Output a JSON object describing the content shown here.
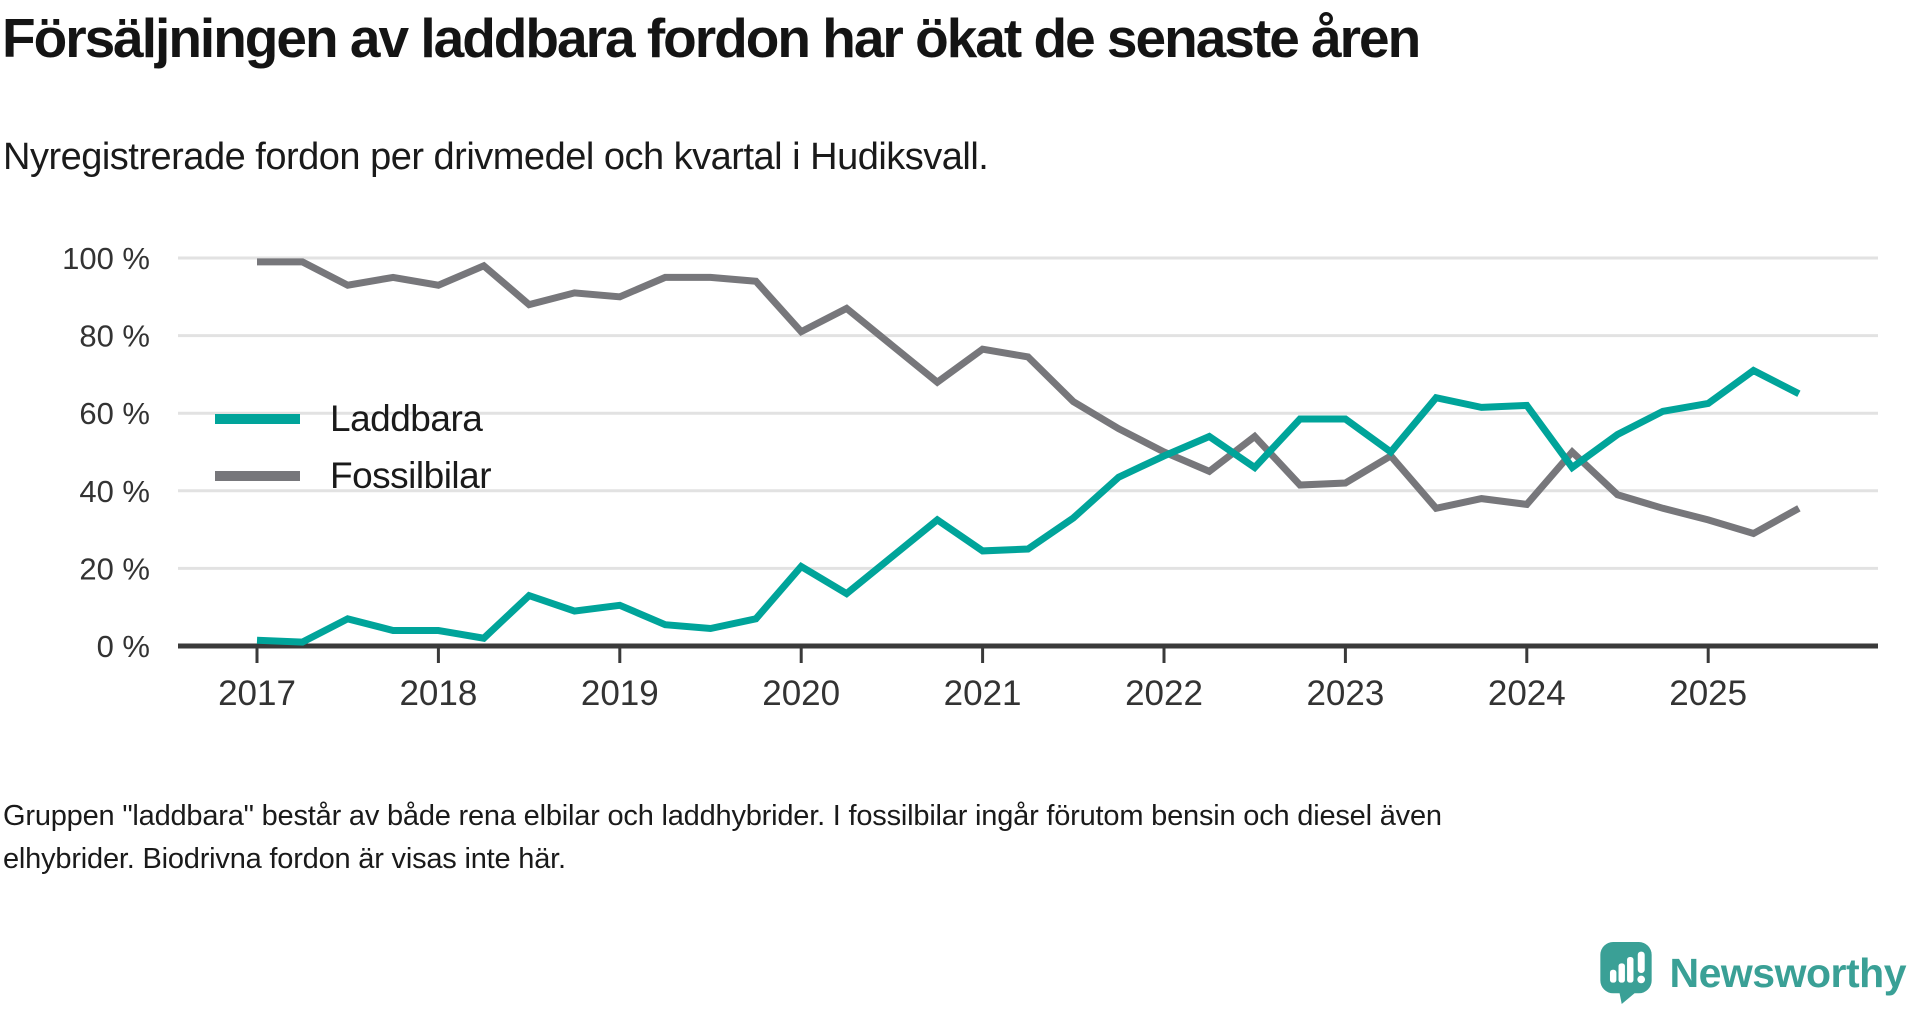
{
  "header": {
    "title": "Försäljningen av laddbara fordon har ökat de senaste åren",
    "subtitle": "Nyregistrerade fordon per drivmedel och kvartal i Hudiksvall."
  },
  "chart_data": {
    "type": "line",
    "title": "Försäljningen av laddbara fordon har ökat de senaste åren",
    "xlabel": "",
    "ylabel": "",
    "ylim": [
      0,
      100
    ],
    "grid": "horizontal",
    "legend_position": "inside-top-left",
    "unit": "%",
    "x": [
      "2017 Q1",
      "2017 Q2",
      "2017 Q3",
      "2017 Q4",
      "2018 Q1",
      "2018 Q2",
      "2018 Q3",
      "2018 Q4",
      "2019 Q1",
      "2019 Q2",
      "2019 Q3",
      "2019 Q4",
      "2020 Q1",
      "2020 Q2",
      "2020 Q3",
      "2020 Q4",
      "2021 Q1",
      "2021 Q2",
      "2021 Q3",
      "2021 Q4",
      "2022 Q1",
      "2022 Q2",
      "2022 Q3",
      "2022 Q4",
      "2023 Q1",
      "2023 Q2",
      "2023 Q3",
      "2023 Q4",
      "2024 Q1",
      "2024 Q2",
      "2024 Q3",
      "2024 Q4",
      "2025 Q1",
      "2025 Q2",
      "2025 Q3"
    ],
    "x_ticks": [
      {
        "label": "2017"
      },
      {
        "label": "2018"
      },
      {
        "label": "2019"
      },
      {
        "label": "2020"
      },
      {
        "label": "2021"
      },
      {
        "label": "2022"
      },
      {
        "label": "2023"
      },
      {
        "label": "2024"
      },
      {
        "label": "2025"
      }
    ],
    "y_ticks": [
      {
        "value": 0,
        "label": "0 %"
      },
      {
        "value": 20,
        "label": "20 %"
      },
      {
        "value": 40,
        "label": "40 %"
      },
      {
        "value": 60,
        "label": "60 %"
      },
      {
        "value": 80,
        "label": "80 %"
      },
      {
        "value": 100,
        "label": "100 %"
      }
    ],
    "series": [
      {
        "name": "Laddbara",
        "color": "#00A49A",
        "values": [
          1.5,
          1,
          7,
          4,
          4,
          2,
          13,
          9,
          10.5,
          5.5,
          4.5,
          7,
          20.5,
          13.5,
          23,
          32.5,
          24.5,
          25,
          33,
          43.5,
          49,
          54,
          46,
          58.5,
          58.5,
          50,
          64,
          61.5,
          62,
          46,
          54.5,
          60.5,
          62.5,
          71,
          65
        ]
      },
      {
        "name": "Fossilbilar",
        "color": "#77777B",
        "values": [
          99,
          99,
          93,
          95,
          93,
          98,
          88,
          91,
          90,
          95,
          95,
          94,
          81,
          87,
          77.5,
          68,
          76.5,
          74.5,
          63,
          56,
          50,
          45,
          54,
          41.5,
          42,
          49,
          35.5,
          38,
          36.5,
          50,
          39,
          35.5,
          32.5,
          29,
          35.5
        ]
      }
    ]
  },
  "footer": {
    "line1": "Gruppen \"laddbara\" består av både rena elbilar och laddhybrider. I fossilbilar ingår förutom bensin och diesel även",
    "line2": "elhybrider. Biodrivna fordon är visas inte här."
  },
  "logo": {
    "text": "Newsworthy",
    "color": "#3AA096"
  }
}
